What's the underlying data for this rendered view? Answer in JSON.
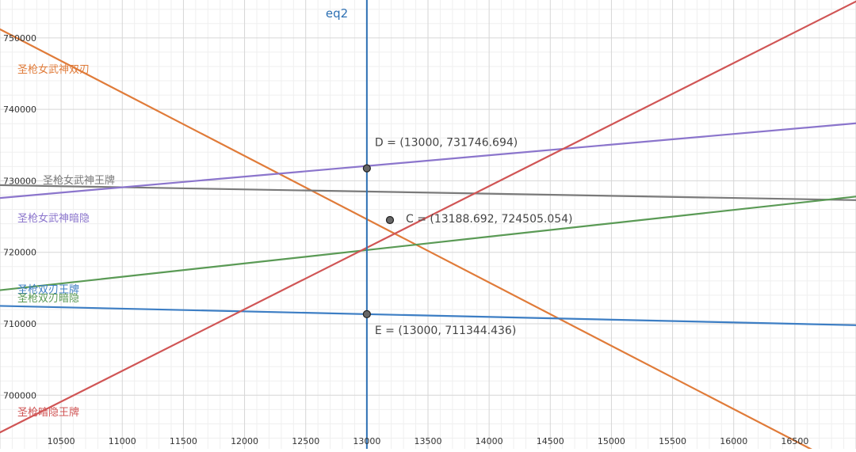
{
  "chart_data": {
    "type": "line",
    "title": "",
    "xlabel": "",
    "ylabel": "",
    "xlim": [
      10000,
      17000
    ],
    "ylim": [
      692500,
      755300
    ],
    "grid": true,
    "x_ticks": [
      10500,
      11000,
      11500,
      12000,
      12500,
      13000,
      13500,
      14000,
      14500,
      15000,
      15500,
      16000,
      16500
    ],
    "y_ticks": [
      700000,
      710000,
      720000,
      730000,
      740000,
      750000
    ],
    "y_tick_labels": [
      "700000",
      "710000",
      "720000",
      "730000",
      "740000",
      "750000"
    ],
    "vertical_line": {
      "name": "eq2",
      "x": 13000,
      "color": "#2d70b3"
    },
    "series": [
      {
        "name": "圣枪女武神双刃",
        "color": "#e07b39",
        "points": [
          [
            10000,
            751200
          ],
          [
            17000,
            689200
          ]
        ]
      },
      {
        "name": "圣枪女武神王牌",
        "color": "#7a7a7a",
        "points": [
          [
            10000,
            729400
          ],
          [
            17000,
            727300
          ]
        ]
      },
      {
        "name": "圣枪女武神暗隐",
        "color": "#8b75cc",
        "points": [
          [
            10000,
            727600
          ],
          [
            17000,
            738050
          ]
        ]
      },
      {
        "name": "圣枪双刃王牌",
        "color": "#3d7ec4",
        "points": [
          [
            10000,
            712500
          ],
          [
            17000,
            709800
          ]
        ]
      },
      {
        "name": "圣枪双刃暗隐",
        "color": "#5a9a55",
        "points": [
          [
            10000,
            714700
          ],
          [
            17000,
            727800
          ]
        ]
      },
      {
        "name": "圣枪暗隐王牌",
        "color": "#d05555",
        "points": [
          [
            10000,
            694800
          ],
          [
            17000,
            755100
          ]
        ]
      }
    ],
    "points": [
      {
        "name": "D",
        "x": 13000,
        "y": 731746.694,
        "label": "D = (13000, 731746.694)"
      },
      {
        "name": "C",
        "x": 13188.692,
        "y": 724505.054,
        "label": "C = (13188.692, 724505.054)"
      },
      {
        "name": "E",
        "x": 13000,
        "y": 711344.436,
        "label": "E = (13000, 711344.436)"
      }
    ]
  }
}
